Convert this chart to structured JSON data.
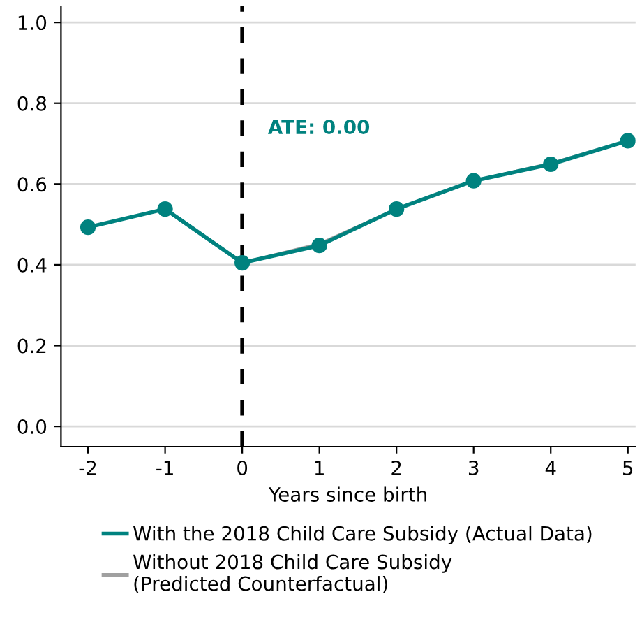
{
  "chart_data": {
    "type": "line",
    "xlabel": "Years since birth",
    "x": [
      -2,
      -1,
      0,
      1,
      2,
      3,
      4,
      5
    ],
    "series": [
      {
        "name": "Without 2018 Child Care Subsidy\n(Predicted Counterfactual)",
        "color": "#a0a0a0",
        "values": [
          null,
          null,
          0.405,
          0.452,
          0.538,
          0.608,
          0.651,
          0.707
        ],
        "marker": "none"
      },
      {
        "name": "With the 2018 Child Care Subsidy (Actual Data)",
        "color": "#00827f",
        "values": [
          0.493,
          0.538,
          0.405,
          0.448,
          0.538,
          0.608,
          0.649,
          0.707
        ],
        "marker": "circle"
      }
    ],
    "xlim": [
      -2.35,
      5.1
    ],
    "xticks": [
      -2,
      -1,
      0,
      1,
      2,
      3,
      4,
      5
    ],
    "ylim": [
      -0.05,
      1.04
    ],
    "yticks": [
      {
        "value": 0,
        "label": "0.0"
      },
      0.2,
      0.4,
      0.6,
      0.8,
      {
        "value": 1,
        "label": "1.0"
      }
    ],
    "ref_lines": [
      {
        "axis": "x",
        "value": 0,
        "color": "#000000",
        "line_style": "dashed"
      }
    ],
    "annotations": [
      "ATE: 0.00"
    ],
    "grid": "y",
    "legend": "bottom"
  }
}
